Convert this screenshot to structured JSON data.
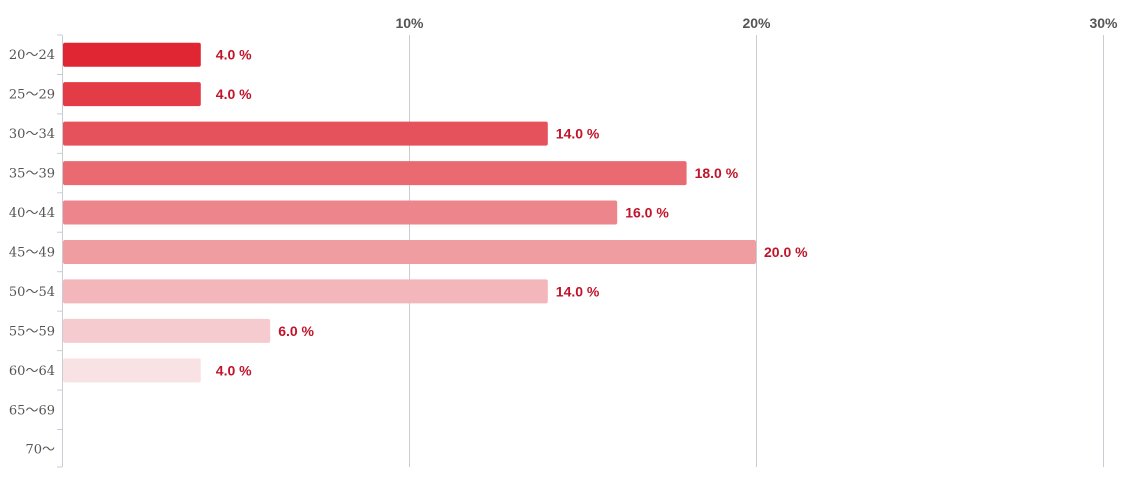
{
  "chart_data": {
    "type": "bar",
    "orientation": "horizontal",
    "categories": [
      "20〜24",
      "25〜29",
      "30〜34",
      "35〜39",
      "40〜44",
      "45〜49",
      "50〜54",
      "55〜59",
      "60〜64",
      "65〜69",
      "70〜"
    ],
    "values": [
      4.0,
      4.0,
      14.0,
      18.0,
      16.0,
      20.0,
      14.0,
      6.0,
      4.0,
      null,
      null
    ],
    "data_labels": [
      "4.0 %",
      "4.0 %",
      "14.0 %",
      "18.0 %",
      "16.0 %",
      "20.0 %",
      "14.0 %",
      "6.0 %",
      "4.0 %",
      "",
      ""
    ],
    "xlim": [
      0,
      30
    ],
    "x_ticks": [
      10,
      20,
      30
    ],
    "x_tick_labels": [
      "10%",
      "20%",
      "30%"
    ],
    "x_axis_position": "top",
    "grid": true,
    "legend": "none",
    "title": "",
    "xlabel": "",
    "ylabel": "",
    "bar_colors": [
      "#e02533",
      "#e33c47",
      "#e6525c",
      "#ea6a72",
      "#ed858c",
      "#f09da2",
      "#f3b6ba",
      "#f6cbcf",
      "#f9e2e4",
      "#fbeced",
      "#fcf1f2"
    ],
    "label_color": "#c0142a",
    "grid_color": "#c9ccd3"
  }
}
